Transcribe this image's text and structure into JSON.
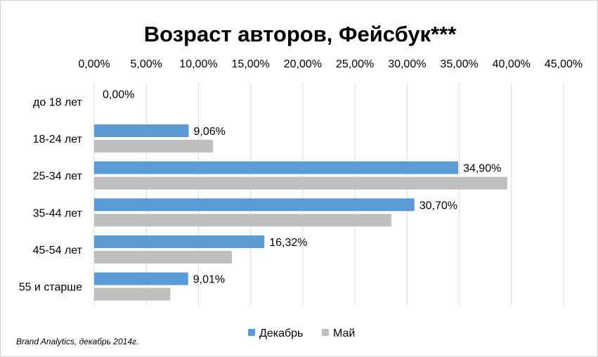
{
  "chart_data": {
    "type": "bar",
    "orientation": "horizontal",
    "title": "Возраст авторов, Фейсбук***",
    "categories": [
      "до 18 лет",
      "18-24 лет",
      "25-34 лет",
      "35-44 лет",
      "45-54 лет",
      "55 и старше"
    ],
    "series": [
      {
        "name": "Декабрь",
        "color": "#5b9bd5",
        "values": [
          0.0,
          9.06,
          34.9,
          30.7,
          16.32,
          9.01
        ],
        "data_labels": [
          "0,00%",
          "9,06%",
          "34,90%",
          "30,70%",
          "16,32%",
          "9,01%"
        ]
      },
      {
        "name": "Май",
        "color": "#bfbfbf",
        "values": [
          0.0,
          11.4,
          39.6,
          28.5,
          13.2,
          7.3
        ]
      }
    ],
    "x_ticks": [
      "0,00%",
      "5,00%",
      "10,00%",
      "15,00%",
      "20,00%",
      "25,00%",
      "30,00%",
      "35,00%",
      "40,00%",
      "45,00%"
    ],
    "xlim": [
      0,
      45
    ],
    "x_axis_position": "top",
    "grid": true,
    "legend_position": "bottom",
    "source_note": "Brand Analytics, декабрь 2014г."
  }
}
